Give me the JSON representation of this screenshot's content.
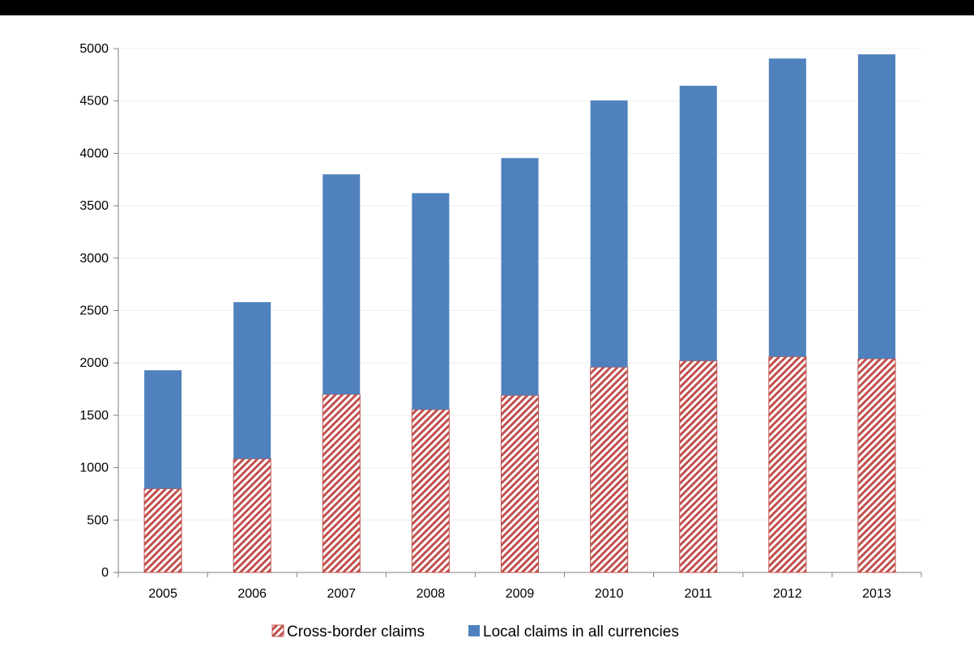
{
  "chart_data": {
    "type": "bar",
    "stacked": true,
    "categories": [
      "2005",
      "2006",
      "2007",
      "2008",
      "2009",
      "2010",
      "2011",
      "2012",
      "2013"
    ],
    "series": [
      {
        "name": "Cross-border claims",
        "values": [
          800,
          1085,
          1700,
          1555,
          1690,
          1960,
          2020,
          2060,
          2040
        ],
        "color": "#c0504d",
        "pattern": "diagonal-hatch"
      },
      {
        "name": "Local claims in all currencies",
        "values": [
          1130,
          1495,
          2100,
          2065,
          2265,
          2545,
          2625,
          2845,
          2905
        ],
        "color": "#4f81bd",
        "pattern": "solid"
      }
    ],
    "ylim": [
      0,
      5000
    ],
    "yticks": [
      0,
      500,
      1000,
      1500,
      2000,
      2500,
      3000,
      3500,
      4000,
      4500,
      5000
    ],
    "grid": true,
    "legend": "bottom-center",
    "title": "",
    "xlabel": "",
    "ylabel": ""
  }
}
